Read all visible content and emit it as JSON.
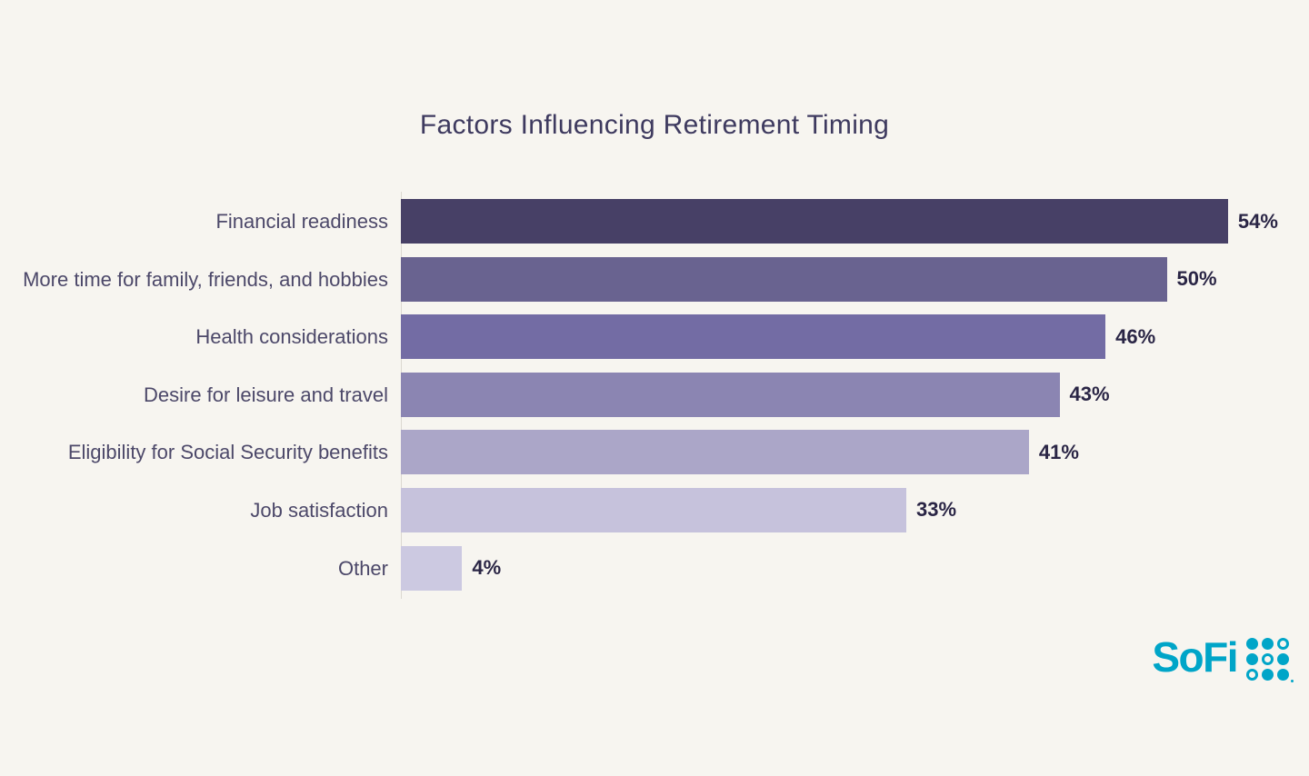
{
  "page": {
    "background": "#F7F5F0"
  },
  "chart_data": {
    "type": "bar",
    "orientation": "horizontal",
    "title": "Factors Influencing Retirement Timing",
    "categories": [
      "Financial readiness",
      "More time for family, friends, and hobbies",
      "Health considerations",
      "Desire for leisure and travel",
      "Eligibility for Social Security benefits",
      "Job satisfaction",
      "Other"
    ],
    "values": [
      54,
      50,
      46,
      43,
      41,
      33,
      4
    ],
    "value_labels": [
      "54%",
      "50%",
      "46%",
      "43%",
      "41%",
      "33%",
      "4%"
    ],
    "bar_colors": [
      "#474066",
      "#696390",
      "#736CA4",
      "#8B85B2",
      "#ABA6C8",
      "#C6C2DC",
      "#CCC9E1"
    ],
    "xlabel": "",
    "ylabel": "",
    "xlim": [
      0,
      57
    ],
    "grid": false,
    "legend": false,
    "data_labels_position": "right-of-bar",
    "value_unit": "%"
  },
  "colors": {
    "title_text": "#3E3A5F",
    "category_text": "#4C4869",
    "value_text": "#2A2545",
    "axis_line": "#DBD8D1",
    "brand_teal": "#00A5C8"
  },
  "branding": {
    "logo_text": "SoFi",
    "dot_grid_pattern": [
      "filled",
      "filled",
      "ring",
      "filled",
      "ring",
      "filled",
      "ring",
      "filled",
      "filled"
    ]
  }
}
